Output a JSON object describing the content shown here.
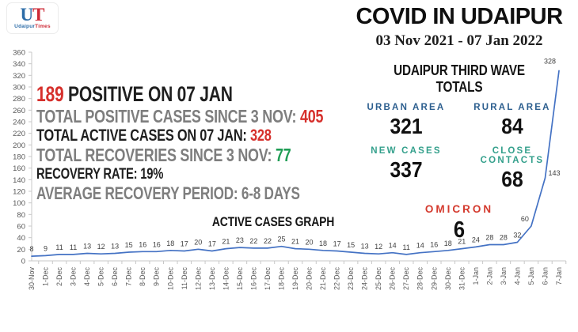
{
  "logo": {
    "letter_u": "U",
    "letter_t": "T",
    "brand_part1": "Udaipur",
    "brand_part2": "Times"
  },
  "header": {
    "title": "COVID IN UDAIPUR",
    "date_range": "03 Nov 2021 - 07 Jan 2022"
  },
  "summary": {
    "positive_today": {
      "value": "189",
      "label": " POSITIVE ON 07 JAN"
    },
    "total_positive": {
      "label": "TOTAL POSITIVE CASES SINCE 3 NOV: ",
      "value": "405"
    },
    "total_active": {
      "label": "TOTAL ACTIVE CASES ON 07 JAN: ",
      "value": "328"
    },
    "total_recoveries": {
      "label": "TOTAL RECOVERIES SINCE 3 NOV: ",
      "value": "77"
    },
    "recovery_rate": {
      "label": "RECOVERY RATE: 19%"
    },
    "recovery_period": {
      "label": "AVERAGE RECOVERY PERIOD: 6-8 DAYS"
    }
  },
  "wave_totals": {
    "heading": "UDAIPUR THIRD WAVE TOTALS",
    "cells": [
      {
        "label": "URBAN AREA",
        "value": "321"
      },
      {
        "label": "RURAL AREA",
        "value": "84"
      },
      {
        "label": "NEW CASES",
        "value": "337"
      },
      {
        "label": "CLOSE CONTACTS",
        "value": "68"
      }
    ],
    "omicron": {
      "label": "OMICRON",
      "value": "6"
    }
  },
  "colors": {
    "accent_red": "#D6302C",
    "accent_green": "#1F9D55",
    "area_label_blue": "#2D5F8F",
    "case_label_teal": "#34A08C",
    "line_blue": "#4472C4",
    "text_dark": "#1F1F1F",
    "text_gray": "#7E7E7E",
    "axis_gray": "#C8C8C8"
  },
  "chart_data": {
    "type": "line",
    "title": "ACTIVE CASES GRAPH",
    "categories": [
      "30-Nov",
      "1-Dec",
      "2-Dec",
      "3-Dec",
      "4-Dec",
      "5-Dec",
      "6-Dec",
      "7-Dec",
      "8-Dec",
      "9-Dec",
      "10-Dec",
      "11-Dec",
      "12-Dec",
      "13-Dec",
      "14-Dec",
      "15-Dec",
      "16-Dec",
      "17-Dec",
      "18-Dec",
      "19-Dec",
      "20-Dec",
      "21-Dec",
      "22-Dec",
      "23-Dec",
      "24-Dec",
      "25-Dec",
      "26-Dec",
      "27-Dec",
      "28-Dec",
      "29-Dec",
      "30-Dec",
      "31-Dec",
      "1-Jan",
      "2-Jan",
      "3-Jan",
      "4-Jan",
      "5-Jan",
      "6-Jan",
      "7-Jan"
    ],
    "values": [
      8,
      9,
      11,
      11,
      13,
      12,
      13,
      15,
      16,
      16,
      18,
      17,
      20,
      17,
      21,
      23,
      22,
      22,
      25,
      21,
      20,
      18,
      17,
      15,
      13,
      12,
      14,
      11,
      14,
      16,
      18,
      21,
      24,
      28,
      28,
      32,
      60,
      143,
      328
    ],
    "xlabel": "",
    "ylabel": "",
    "ylim": [
      0,
      360
    ],
    "ytick_step": 20,
    "line_color": "#4472C4",
    "data_labels": true,
    "grid": false,
    "legend": "none",
    "x_label_rotation": -90
  }
}
